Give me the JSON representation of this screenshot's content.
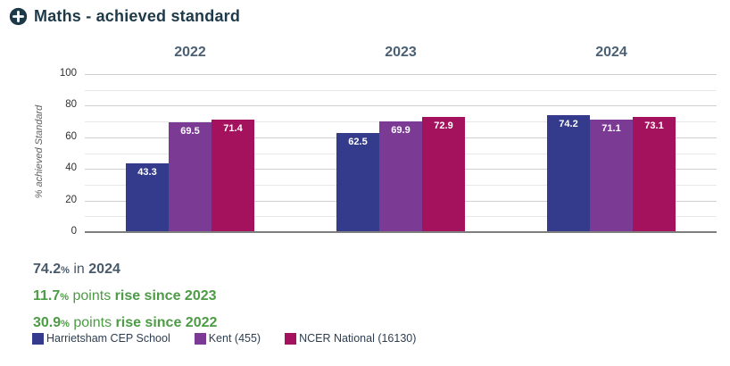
{
  "header": {
    "title": "Maths - achieved standard",
    "icon": "plus-circle"
  },
  "chart_data": {
    "type": "bar",
    "categories": [
      "2022",
      "2023",
      "2024"
    ],
    "series": [
      {
        "name": "Harrietsham CEP School",
        "color": "#343b8d",
        "values": [
          43.3,
          62.5,
          74.2
        ]
      },
      {
        "name": "Kent (455)",
        "color": "#7b3b95",
        "values": [
          69.5,
          69.9,
          71.1
        ]
      },
      {
        "name": "NCER National (16130)",
        "color": "#a4115c",
        "values": [
          71.4,
          72.9,
          73.1
        ]
      }
    ],
    "ylabel": "% achieved Standard",
    "ylim": [
      0,
      100
    ],
    "yticks": [
      0,
      20,
      40,
      60,
      80,
      100
    ],
    "grid_step": 10,
    "grid": "horizontal",
    "legend_position": "bottom",
    "value_labels": "inside-top, white"
  },
  "summary": {
    "lines": [
      {
        "value": "74.2",
        "percent": "%",
        "plain": " in ",
        "bold": "2024",
        "color": "#48596c"
      },
      {
        "value": "11.7",
        "percent": "%",
        "plain": " points ",
        "bold": "rise since 2023",
        "color": "#4c9b45"
      },
      {
        "value": "30.9",
        "percent": "%",
        "plain": " points ",
        "bold": "rise since 2022",
        "color": "#4c9b45"
      }
    ]
  },
  "colors": {
    "title": "#1e3a49",
    "category_header": "#4b6075",
    "grid_major": "#cfcfcf",
    "grid_minor": "#e8e8e8",
    "axis_line": "#7e7e7e",
    "legend_text": "#2e3e50"
  }
}
